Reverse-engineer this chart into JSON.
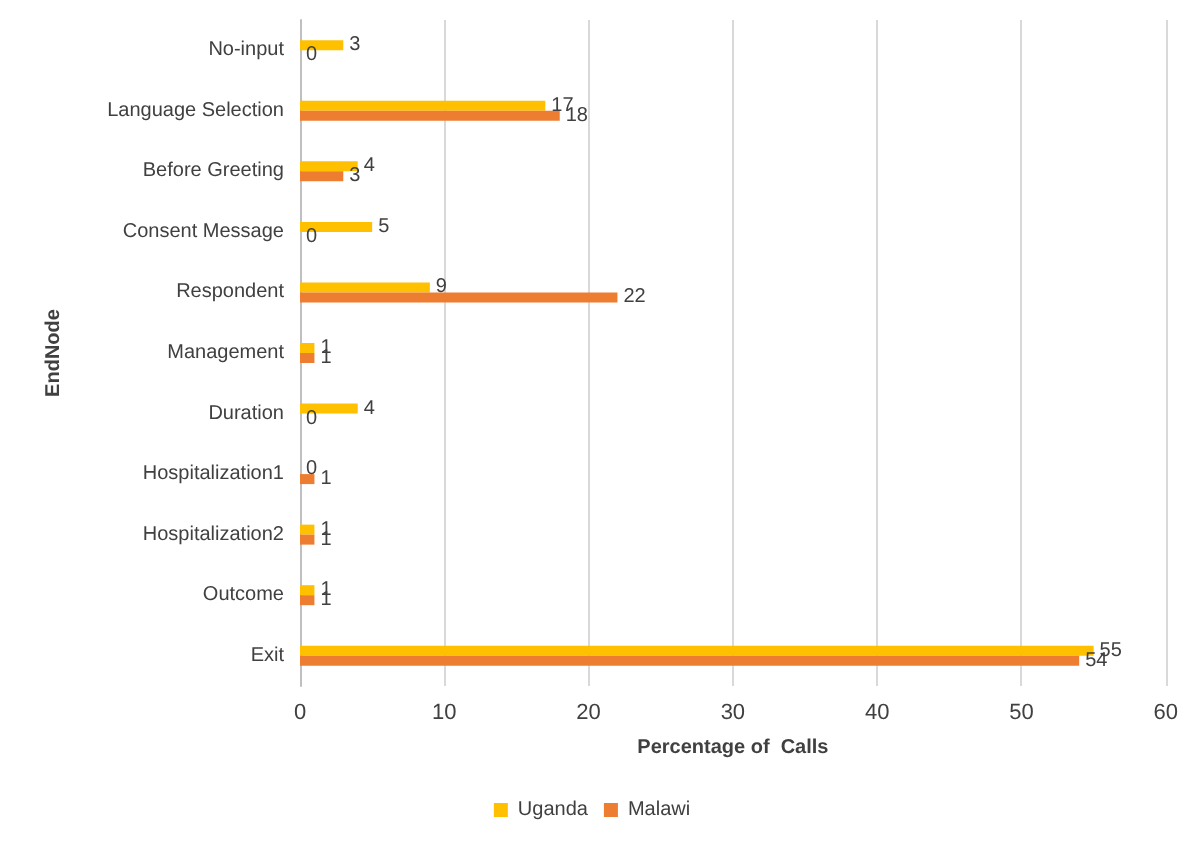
{
  "chart_data": {
    "type": "bar",
    "orientation": "horizontal",
    "xlabel": "Percentage of  Calls",
    "ylabel": "EndNode",
    "categories": [
      "No-input",
      "Language Selection",
      "Before Greeting",
      "Consent Message",
      "Respondent",
      "Management",
      "Duration",
      "Hospitalization1",
      "Hospitalization2",
      "Outcome",
      "Exit"
    ],
    "series": [
      {
        "name": "Uganda",
        "color": "#ffc000",
        "values": [
          3,
          17,
          4,
          5,
          9,
          1,
          4,
          0,
          1,
          1,
          55
        ]
      },
      {
        "name": "Malawi",
        "color": "#ed7d31",
        "values": [
          0,
          18,
          3,
          0,
          22,
          1,
          0,
          1,
          1,
          1,
          54
        ]
      }
    ],
    "xlim": [
      0,
      60
    ],
    "xticks": [
      0,
      10,
      20,
      30,
      40,
      50,
      60
    ],
    "grid": "x",
    "legend": "bottom",
    "data_labels": true
  }
}
